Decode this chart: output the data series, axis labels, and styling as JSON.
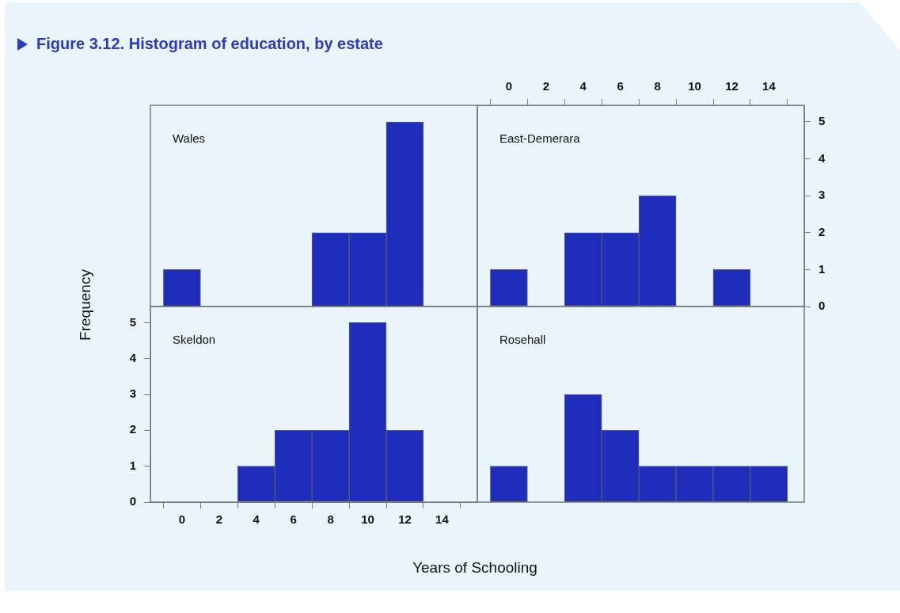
{
  "chart_data": [
    {
      "type": "histogram",
      "title": "Wales",
      "annotations": [
        "Figure 3.12. Histogram of education, by estate"
      ],
      "bins": [
        -1,
        1,
        3,
        5,
        7,
        9,
        11,
        13,
        15
      ],
      "values": [
        1,
        0,
        0,
        0,
        2,
        2,
        5,
        0
      ],
      "color": "#1f2dbd",
      "xlim": [
        -1.7,
        15.9
      ],
      "xticks": [
        0,
        2,
        4,
        6,
        8,
        10,
        12,
        14
      ],
      "ylim": [
        0,
        5.45
      ],
      "yticks": [
        0,
        1,
        2,
        3,
        4,
        5
      ],
      "tick_labels": false
    },
    {
      "type": "histogram",
      "title": "East-Demerara",
      "bins": [
        -1,
        1,
        3,
        5,
        7,
        9,
        11,
        13,
        15
      ],
      "values": [
        1,
        0,
        2,
        2,
        3,
        0,
        1,
        0
      ],
      "color": "#1f2dbd",
      "xlim": [
        -1.7,
        15.9
      ],
      "xticks": [
        0,
        2,
        4,
        6,
        8,
        10,
        12,
        14
      ],
      "ylim": [
        0,
        5.45
      ],
      "yticks": [
        0,
        1,
        2,
        3,
        4,
        5
      ]
    },
    {
      "type": "histogram",
      "title": "Skeldon",
      "xlabel": "Years of Schooling",
      "ylabel": "Frequency",
      "bins": [
        -1,
        1,
        3,
        5,
        7,
        9,
        11,
        13,
        15
      ],
      "values": [
        0,
        0,
        1,
        2,
        2,
        5,
        2,
        0
      ],
      "color": "#1f2dbd",
      "xlim": [
        -1.7,
        15.9
      ],
      "xticks": [
        0,
        2,
        4,
        6,
        8,
        10,
        12,
        14
      ],
      "ylim": [
        0,
        5.45
      ],
      "yticks": [
        0,
        1,
        2,
        3,
        4,
        5
      ]
    },
    {
      "type": "histogram",
      "title": "Rosehall",
      "bins": [
        -1,
        1,
        3,
        5,
        7,
        9,
        11,
        13,
        15
      ],
      "values": [
        1,
        0,
        3,
        2,
        1,
        1,
        1,
        1
      ],
      "color": "#1f2dbd",
      "xlim": [
        -1.7,
        15.9
      ],
      "xticks": [
        0,
        2,
        4,
        6,
        8,
        10,
        12,
        14
      ],
      "ylim": [
        0,
        5.45
      ],
      "yticks": [
        0,
        1,
        2,
        3,
        4,
        5
      ],
      "tick_labels": false
    }
  ]
}
